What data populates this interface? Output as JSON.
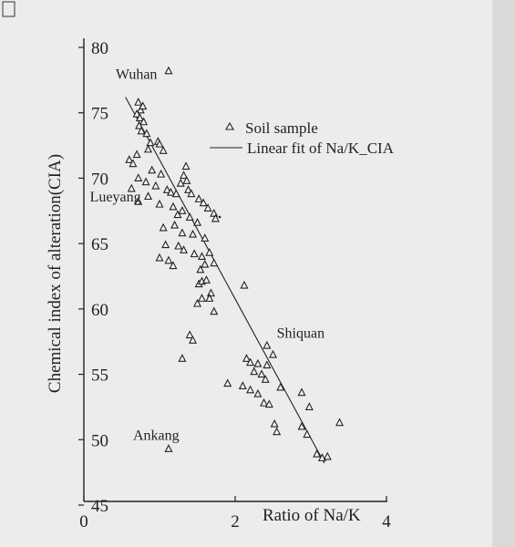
{
  "chart_data": {
    "type": "scatter",
    "xlabel": "Ratio of Na/K",
    "ylabel": "Chemical index of alteration(CIA)",
    "xlim": [
      0,
      4
    ],
    "ylim": [
      45,
      80
    ],
    "x_ticks": [
      "0",
      "2",
      "4"
    ],
    "y_ticks": [
      "45",
      "50",
      "55",
      "60",
      "65",
      "70",
      "75",
      "80"
    ],
    "legend": {
      "placement": "top-right",
      "marker_label": "Soil sample",
      "line_label": "Linear fit of Na/K_CIA"
    },
    "site_labels": [
      {
        "text": "Wuhan",
        "x": 0.42,
        "y": 77.6
      },
      {
        "text": "Lueyang",
        "x": 0.08,
        "y": 68.2
      },
      {
        "text": "Shiquan",
        "x": 2.55,
        "y": 57.8
      },
      {
        "text": "Ankang",
        "x": 0.65,
        "y": 50.0
      }
    ],
    "series": [
      {
        "name": "Soil sample",
        "points": [
          [
            1.12,
            78.2
          ],
          [
            0.72,
            75.8
          ],
          [
            0.75,
            75.2
          ],
          [
            0.78,
            75.5
          ],
          [
            0.7,
            74.9
          ],
          [
            0.74,
            74.6
          ],
          [
            0.79,
            74.3
          ],
          [
            0.73,
            74.0
          ],
          [
            0.76,
            73.6
          ],
          [
            0.83,
            73.4
          ],
          [
            0.88,
            72.7
          ],
          [
            0.98,
            72.8
          ],
          [
            1.0,
            72.6
          ],
          [
            0.85,
            72.2
          ],
          [
            1.05,
            72.1
          ],
          [
            0.7,
            71.8
          ],
          [
            0.6,
            71.4
          ],
          [
            0.65,
            71.1
          ],
          [
            0.9,
            70.6
          ],
          [
            1.02,
            70.3
          ],
          [
            0.72,
            70.0
          ],
          [
            0.82,
            69.7
          ],
          [
            0.95,
            69.4
          ],
          [
            0.63,
            69.2
          ],
          [
            1.1,
            69.1
          ],
          [
            0.85,
            68.6
          ],
          [
            0.72,
            68.2
          ],
          [
            1.0,
            68.0
          ],
          [
            1.35,
            70.9
          ],
          [
            1.32,
            70.2
          ],
          [
            1.28,
            69.6
          ],
          [
            1.36,
            69.8
          ],
          [
            1.38,
            69.1
          ],
          [
            1.15,
            68.9
          ],
          [
            1.22,
            68.8
          ],
          [
            1.42,
            68.8
          ],
          [
            1.52,
            68.4
          ],
          [
            1.58,
            68.1
          ],
          [
            1.64,
            67.7
          ],
          [
            1.72,
            67.3
          ],
          [
            1.18,
            67.8
          ],
          [
            1.24,
            67.2
          ],
          [
            1.3,
            67.5
          ],
          [
            1.4,
            67.0
          ],
          [
            1.5,
            66.6
          ],
          [
            1.05,
            66.2
          ],
          [
            1.2,
            66.4
          ],
          [
            1.3,
            65.8
          ],
          [
            1.44,
            65.7
          ],
          [
            1.6,
            65.4
          ],
          [
            1.74,
            66.9
          ],
          [
            1.08,
            64.9
          ],
          [
            1.25,
            64.8
          ],
          [
            1.32,
            64.5
          ],
          [
            1.46,
            64.2
          ],
          [
            1.56,
            64.0
          ],
          [
            1.0,
            63.9
          ],
          [
            1.12,
            63.7
          ],
          [
            1.66,
            64.3
          ],
          [
            1.72,
            63.5
          ],
          [
            1.18,
            63.3
          ],
          [
            1.6,
            63.4
          ],
          [
            1.54,
            63.0
          ],
          [
            1.52,
            61.9
          ],
          [
            1.56,
            62.1
          ],
          [
            1.62,
            62.2
          ],
          [
            1.68,
            61.2
          ],
          [
            1.56,
            60.8
          ],
          [
            1.66,
            60.8
          ],
          [
            1.5,
            60.4
          ],
          [
            1.72,
            59.8
          ],
          [
            2.12,
            61.8
          ],
          [
            1.4,
            58.0
          ],
          [
            1.44,
            57.6
          ],
          [
            1.3,
            56.2
          ],
          [
            2.42,
            57.2
          ],
          [
            2.5,
            56.5
          ],
          [
            2.15,
            56.2
          ],
          [
            2.2,
            55.9
          ],
          [
            2.3,
            55.8
          ],
          [
            2.42,
            55.7
          ],
          [
            2.25,
            55.2
          ],
          [
            2.35,
            55.0
          ],
          [
            2.4,
            54.6
          ],
          [
            1.9,
            54.3
          ],
          [
            2.1,
            54.1
          ],
          [
            2.2,
            53.8
          ],
          [
            2.3,
            53.5
          ],
          [
            2.6,
            54.0
          ],
          [
            2.38,
            52.8
          ],
          [
            2.45,
            52.7
          ],
          [
            2.88,
            53.6
          ],
          [
            2.52,
            51.2
          ],
          [
            2.55,
            50.6
          ],
          [
            2.98,
            52.5
          ],
          [
            3.38,
            51.3
          ],
          [
            2.88,
            51.0
          ],
          [
            2.95,
            50.4
          ],
          [
            3.08,
            48.9
          ],
          [
            3.15,
            48.6
          ],
          [
            3.22,
            48.7
          ],
          [
            1.12,
            49.3
          ]
        ]
      }
    ],
    "fit_line": {
      "name": "Linear fit of Na/K_CIA",
      "x": [
        0.55,
        3.18
      ],
      "y": [
        76.2,
        48.2
      ]
    }
  }
}
